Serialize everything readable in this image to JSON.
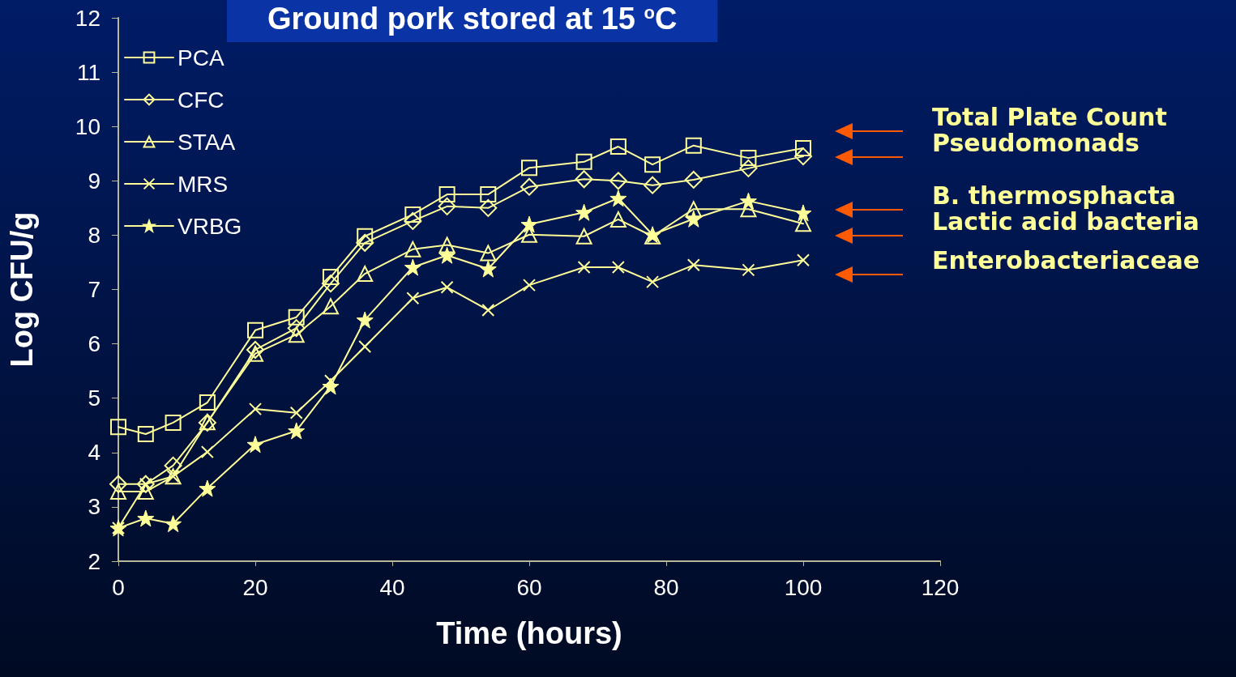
{
  "chart_data": {
    "type": "line",
    "title": "Ground pork stored at 15 $^{o}$C",
    "xlabel": "Time (hours)",
    "ylabel": "Log CFU/g",
    "x": [
      0,
      4,
      8,
      13,
      20,
      26,
      31,
      36,
      43,
      48,
      54,
      60,
      68,
      73,
      78,
      84,
      92,
      100
    ],
    "series": [
      {
        "name": "PCA",
        "color": "#ffff99",
        "marker": "square",
        "values": [
          4.47,
          4.34,
          4.55,
          4.92,
          6.25,
          6.49,
          7.23,
          7.98,
          8.38,
          8.75,
          8.75,
          9.24,
          9.35,
          9.63,
          9.3,
          9.65,
          9.42,
          9.6
        ]
      },
      {
        "name": "CFC",
        "color": "#ffff99",
        "marker": "diamond",
        "values": [
          3.42,
          3.42,
          3.76,
          4.55,
          5.89,
          6.29,
          7.11,
          7.86,
          8.26,
          8.53,
          8.5,
          8.89,
          9.03,
          9.0,
          8.92,
          9.02,
          9.23,
          9.45
        ]
      },
      {
        "name": "STAA",
        "color": "#ffff99",
        "marker": "triangle",
        "values": [
          3.28,
          3.28,
          3.56,
          4.56,
          5.82,
          6.17,
          6.69,
          7.29,
          7.74,
          7.82,
          7.67,
          8.01,
          7.98,
          8.29,
          7.98,
          8.48,
          8.48,
          8.21
        ]
      },
      {
        "name": "MRS",
        "color": "#ffff99",
        "marker": "cross",
        "values": [
          2.61,
          3.42,
          3.56,
          4.01,
          4.8,
          4.73,
          5.32,
          5.95,
          6.84,
          7.04,
          6.62,
          7.08,
          7.41,
          7.41,
          7.14,
          7.45,
          7.36,
          7.54
        ]
      },
      {
        "name": "VRBG",
        "color": "#ffff99",
        "marker": "star",
        "values": [
          2.61,
          2.79,
          2.69,
          3.34,
          4.15,
          4.4,
          5.22,
          6.44,
          7.41,
          7.63,
          7.38,
          8.2,
          8.42,
          8.68,
          8.01,
          8.3,
          8.63,
          8.41
        ]
      }
    ],
    "xlim": [
      0,
      120
    ],
    "xticks": [
      0,
      20,
      40,
      60,
      80,
      100,
      120
    ],
    "ylim": [
      2,
      12
    ],
    "yticks": [
      2,
      3,
      4,
      5,
      6,
      7,
      8,
      9,
      10,
      11,
      12
    ],
    "grid": false,
    "legend": "top left",
    "line_style": "solid",
    "annotations": [
      "Total Plate Count",
      "Pseudomonads",
      "B. thermosphacta",
      "Lactic acid bacteria",
      "Enterobacteriaceae"
    ]
  }
}
